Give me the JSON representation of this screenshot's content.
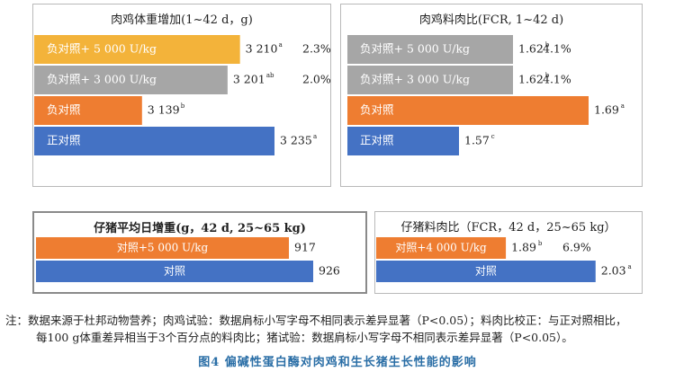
{
  "colors": {
    "yellow": "#F3B33A",
    "gray": "#A6A6A6",
    "orange": "#EE7D31",
    "blue": "#4472C4"
  },
  "chart_data": [
    {
      "type": "bar",
      "orientation": "horizontal",
      "title": "肉鸡体重增加(1~42 d，g)",
      "categories": [
        "负对照+ 5 000 U/kg",
        "负对照+ 3 000 U/kg",
        "负对照",
        "正对照"
      ],
      "values": [
        3210,
        3201,
        3139,
        3235
      ],
      "value_labels": [
        "3 210",
        "3 201",
        "3 139",
        "3 235"
      ],
      "superscripts": [
        "a",
        "ab",
        "b",
        "a"
      ],
      "extra_labels": [
        "2.3%",
        "2.0%",
        "",
        ""
      ],
      "colors": [
        "yellow",
        "gray",
        "orange",
        "blue"
      ]
    },
    {
      "type": "bar",
      "orientation": "horizontal",
      "title": "肉鸡料肉比(FCR, 1~42 d)",
      "categories": [
        "负对照+ 5 000 U/kg",
        "负对照+ 3 000 U/kg",
        "负对照",
        "正对照"
      ],
      "values": [
        1.62,
        1.62,
        1.69,
        1.57
      ],
      "value_labels": [
        "1.62",
        "1.62",
        "1.69",
        "1.57"
      ],
      "superscripts": [
        "b",
        "b",
        "a",
        "c"
      ],
      "extra_labels": [
        "4.1%",
        "4.1%",
        "",
        ""
      ],
      "colors": [
        "gray",
        "gray",
        "orange",
        "blue"
      ]
    },
    {
      "type": "bar",
      "orientation": "horizontal",
      "title": "仔猪平均日增重(g，42 d, 25~65 kg)",
      "categories": [
        "对照+5 000  U/kg",
        "对照"
      ],
      "values": [
        917,
        926
      ],
      "value_labels": [
        "917",
        "926"
      ],
      "superscripts": [
        "",
        ""
      ],
      "extra_labels": [
        "",
        ""
      ],
      "colors": [
        "orange",
        "blue"
      ]
    },
    {
      "type": "bar",
      "orientation": "horizontal",
      "title": "仔猪料肉比（FCR，42 d，25~65 kg）",
      "categories": [
        "对照+4 000 U/kg",
        "对照"
      ],
      "values": [
        1.89,
        2.03
      ],
      "value_labels": [
        "1.89",
        "2.03"
      ],
      "superscripts": [
        "b",
        "a"
      ],
      "extra_labels": [
        "6.9%",
        ""
      ],
      "colors": [
        "orange",
        "blue"
      ]
    }
  ],
  "note": {
    "line1": "注：数据来源于杜邦动物营养；肉鸡试验：数据肩标小写字母不相同表示差异显著（P<0.05）；料肉比校正：与正对照相比，",
    "line2": "每100 g体重差异相当于3个百分点的料肉比；猪试验：数据肩标小写字母不相同表示差异显著（P<0.05）。"
  },
  "caption": "图4   偏碱性蛋白酶对肉鸡和生长猪生长性能的影响"
}
